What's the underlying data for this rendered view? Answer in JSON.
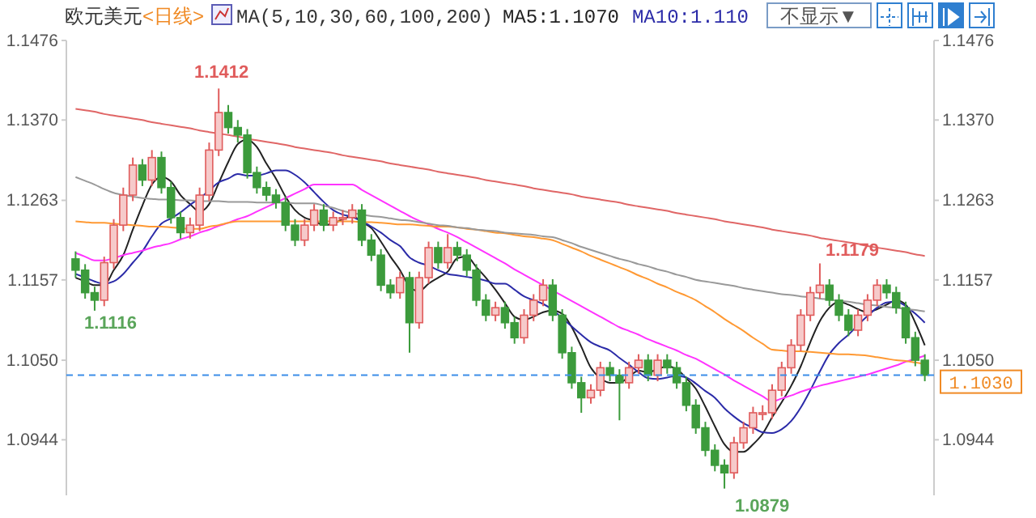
{
  "chart_data": {
    "type": "candlestick",
    "title": "欧元美元",
    "subtitle": "<日线>",
    "legend_title": "MA(5,10,30,60,100,200)",
    "legend": "top",
    "categories": [
      null,
      null,
      null,
      null,
      null,
      null,
      null,
      null,
      null,
      null,
      null,
      null,
      null,
      null,
      null,
      null,
      null,
      null,
      null,
      null,
      null,
      null,
      null,
      null,
      null,
      null,
      null,
      null,
      null,
      null,
      null,
      null,
      null,
      null,
      null,
      null,
      null,
      null,
      null,
      null,
      null,
      null,
      null,
      null,
      null,
      null,
      null,
      null,
      null,
      null,
      null,
      null,
      null,
      null,
      null,
      null,
      null,
      null,
      null,
      null,
      null,
      null,
      null,
      null,
      null,
      null,
      null,
      null,
      null,
      null,
      null,
      null,
      null,
      null,
      null,
      null,
      null,
      null,
      null,
      null,
      null,
      null,
      null,
      null,
      null,
      null,
      null,
      null,
      null,
      null
    ],
    "ylim": [
      1.087,
      1.1476
    ],
    "yticks": [
      1.0944,
      {
        "value": 1.105,
        "label": "1.1050"
      },
      1.1157,
      1.1263,
      {
        "value": 1.137,
        "label": "1.1370"
      },
      1.1476
    ],
    "y2lim": [
      1.087,
      1.1476
    ],
    "y2ticks": [
      1.0944,
      {
        "value": 1.105,
        "label": "1.1050"
      },
      1.1157,
      1.1263,
      {
        "value": 1.137,
        "label": "1.1370"
      },
      1.1476
    ],
    "ref_lines": [
      {
        "axis": "y2",
        "value": 1.103,
        "label": "1.1030",
        "color": "#3d8ee8",
        "line_style": "dashed"
      }
    ],
    "annotations": [
      "不显示▼",
      "1.1412",
      "1.1179",
      "1.1116",
      "1.0879"
    ],
    "series": [
      {
        "type": "candlestick",
        "ohlc": [
          [
            1.1185,
            1.1195,
            1.116,
            1.117
          ],
          [
            1.117,
            1.1178,
            1.1132,
            1.114
          ],
          [
            1.114,
            1.1148,
            1.1116,
            1.113
          ],
          [
            1.113,
            1.1188,
            1.1122,
            1.118
          ],
          [
            1.118,
            1.1238,
            1.1172,
            1.123
          ],
          [
            1.123,
            1.128,
            1.1222,
            1.127
          ],
          [
            1.127,
            1.132,
            1.1262,
            1.131
          ],
          [
            1.131,
            1.1318,
            1.1282,
            1.129
          ],
          [
            1.129,
            1.133,
            1.1282,
            1.132
          ],
          [
            1.132,
            1.1328,
            1.1272,
            1.128
          ],
          [
            1.128,
            1.1288,
            1.1232,
            1.124
          ],
          [
            1.124,
            1.1248,
            1.1212,
            1.122
          ],
          [
            1.122,
            1.124,
            1.1212,
            1.123
          ],
          [
            1.123,
            1.128,
            1.1222,
            1.127
          ],
          [
            1.127,
            1.134,
            1.1262,
            1.133
          ],
          [
            1.133,
            1.1412,
            1.1322,
            1.138
          ],
          [
            1.138,
            1.139,
            1.1352,
            1.136
          ],
          [
            1.136,
            1.137,
            1.134,
            1.135
          ],
          [
            1.135,
            1.1358,
            1.1292,
            1.13
          ],
          [
            1.13,
            1.1308,
            1.1272,
            1.128
          ],
          [
            1.128,
            1.1288,
            1.1262,
            1.127
          ],
          [
            1.127,
            1.1278,
            1.1252,
            1.126
          ],
          [
            1.126,
            1.1268,
            1.1222,
            1.123
          ],
          [
            1.123,
            1.1238,
            1.1202,
            1.121
          ],
          [
            1.121,
            1.1238,
            1.1202,
            1.123
          ],
          [
            1.123,
            1.1258,
            1.1222,
            1.125
          ],
          [
            1.125,
            1.1258,
            1.1222,
            1.123
          ],
          [
            1.123,
            1.1248,
            1.1222,
            1.124
          ],
          [
            1.124,
            1.125,
            1.123,
            1.124
          ],
          [
            1.124,
            1.1258,
            1.1232,
            1.125
          ],
          [
            1.125,
            1.1258,
            1.1202,
            1.121
          ],
          [
            1.121,
            1.1218,
            1.1182,
            1.119
          ],
          [
            1.119,
            1.1198,
            1.1142,
            1.115
          ],
          [
            1.115,
            1.1158,
            1.1132,
            1.114
          ],
          [
            1.114,
            1.1168,
            1.1132,
            1.116
          ],
          [
            1.116,
            1.1168,
            1.106,
            1.11
          ],
          [
            1.11,
            1.1168,
            1.1092,
            1.116
          ],
          [
            1.116,
            1.1208,
            1.1152,
            1.12
          ],
          [
            1.12,
            1.1208,
            1.1172,
            1.118
          ],
          [
            1.118,
            1.1218,
            1.1172,
            1.12
          ],
          [
            1.12,
            1.1208,
            1.1182,
            1.119
          ],
          [
            1.119,
            1.1198,
            1.1162,
            1.117
          ],
          [
            1.117,
            1.1178,
            1.1122,
            1.113
          ],
          [
            1.113,
            1.1138,
            1.1102,
            1.111
          ],
          [
            1.111,
            1.1128,
            1.1102,
            1.112
          ],
          [
            1.112,
            1.1128,
            1.1092,
            1.11
          ],
          [
            1.11,
            1.1108,
            1.1072,
            1.108
          ],
          [
            1.108,
            1.1118,
            1.1072,
            1.111
          ],
          [
            1.111,
            1.1138,
            1.1102,
            1.113
          ],
          [
            1.113,
            1.1158,
            1.1122,
            1.115
          ],
          [
            1.115,
            1.1158,
            1.1102,
            1.111
          ],
          [
            1.111,
            1.1118,
            1.1052,
            1.106
          ],
          [
            1.106,
            1.1068,
            1.1012,
            1.102
          ],
          [
            1.102,
            1.1028,
            1.098,
            1.1
          ],
          [
            1.1,
            1.1018,
            1.0992,
            1.101
          ],
          [
            1.101,
            1.1048,
            1.1002,
            1.104
          ],
          [
            1.104,
            1.1048,
            1.1022,
            1.103
          ],
          [
            1.103,
            1.1038,
            1.097,
            1.102
          ],
          [
            1.102,
            1.1048,
            1.1012,
            1.104
          ],
          [
            1.104,
            1.1058,
            1.1032,
            1.105
          ],
          [
            1.105,
            1.1058,
            1.1022,
            1.103
          ],
          [
            1.103,
            1.1058,
            1.1022,
            1.105
          ],
          [
            1.105,
            1.1058,
            1.1032,
            1.104
          ],
          [
            1.104,
            1.1048,
            1.1012,
            1.102
          ],
          [
            1.102,
            1.1028,
            1.0982,
            1.099
          ],
          [
            1.099,
            1.0998,
            1.0952,
            1.096
          ],
          [
            1.096,
            1.0968,
            1.0922,
            1.093
          ],
          [
            1.093,
            1.0938,
            1.0902,
            1.091
          ],
          [
            1.091,
            1.0918,
            1.0879,
            1.09
          ],
          [
            1.09,
            1.0948,
            1.0892,
            1.094
          ],
          [
            1.094,
            1.0968,
            1.0932,
            1.096
          ],
          [
            1.096,
            1.0988,
            1.0952,
            1.098
          ],
          [
            1.098,
            1.099,
            1.097,
            1.098
          ],
          [
            1.098,
            1.1018,
            1.0972,
            1.101
          ],
          [
            1.101,
            1.1048,
            1.1002,
            1.104
          ],
          [
            1.104,
            1.1078,
            1.1032,
            1.107
          ],
          [
            1.107,
            1.1118,
            1.1062,
            1.111
          ],
          [
            1.111,
            1.1148,
            1.1102,
            1.114
          ],
          [
            1.114,
            1.1179,
            1.1132,
            1.115
          ],
          [
            1.115,
            1.1158,
            1.1122,
            1.113
          ],
          [
            1.113,
            1.1138,
            1.1102,
            1.111
          ],
          [
            1.111,
            1.1118,
            1.1082,
            1.109
          ],
          [
            1.109,
            1.1118,
            1.1082,
            1.111
          ],
          [
            1.111,
            1.1138,
            1.1102,
            1.113
          ],
          [
            1.113,
            1.1158,
            1.1122,
            1.115
          ],
          [
            1.115,
            1.1158,
            1.1132,
            1.114
          ],
          [
            1.114,
            1.1148,
            1.1112,
            1.112
          ],
          [
            1.112,
            1.1128,
            1.1072,
            1.108
          ],
          [
            1.108,
            1.1088,
            1.1042,
            1.105
          ],
          [
            1.105,
            1.1058,
            1.1022,
            1.103
          ]
        ]
      },
      {
        "type": "line",
        "name": "MA5:1.1070",
        "color": "#222222",
        "values": [
          1.116,
          1.1155,
          1.115,
          1.115,
          1.117,
          1.119,
          1.1224,
          1.1256,
          1.1284,
          1.1294,
          1.1288,
          1.127,
          1.1258,
          1.1248,
          1.1258,
          1.1286,
          1.1314,
          1.1338,
          1.1344,
          1.1334,
          1.1312,
          1.1292,
          1.1268,
          1.125,
          1.124,
          1.1236,
          1.123,
          1.1232,
          1.1238,
          1.1242,
          1.1234,
          1.1226,
          1.1208,
          1.1188,
          1.117,
          1.1148,
          1.1142,
          1.1152,
          1.116,
          1.1168,
          1.1186,
          1.1188,
          1.1174,
          1.116,
          1.1144,
          1.1126,
          1.1108,
          1.1104,
          1.1108,
          1.1114,
          1.1116,
          1.1112,
          1.1094,
          1.1068,
          1.104,
          1.1026,
          1.102,
          1.102,
          1.1028,
          1.1036,
          1.1034,
          1.1038,
          1.1042,
          1.1038,
          1.1026,
          1.1012,
          1.0988,
          1.0962,
          1.0938,
          1.0928,
          1.0928,
          1.0938,
          1.0952,
          1.0974,
          1.0994,
          1.1016,
          1.1042,
          1.1074,
          1.1102,
          1.112,
          1.1128,
          1.1124,
          1.1118,
          1.1114,
          1.1118,
          1.1124,
          1.113,
          1.1124,
          1.11,
          1.107
        ]
      },
      {
        "type": "line",
        "name": "MA10:1.110",
        "color": "#2b2ba8",
        "values": [
          1.1165,
          1.116,
          1.1155,
          1.1152,
          1.1155,
          1.1165,
          1.118,
          1.1195,
          1.1215,
          1.1232,
          1.1239,
          1.1247,
          1.1257,
          1.1266,
          1.1276,
          1.1287,
          1.1292,
          1.1298,
          1.1296,
          1.1296,
          1.1299,
          1.1303,
          1.1303,
          1.1297,
          1.1287,
          1.1274,
          1.1261,
          1.125,
          1.1244,
          1.1241,
          1.1235,
          1.1228,
          1.122,
          1.121,
          1.1202,
          1.1187,
          1.118,
          1.1176,
          1.117,
          1.1165,
          1.1163,
          1.1161,
          1.1159,
          1.1156,
          1.1152,
          1.1152,
          1.1144,
          1.1135,
          1.113,
          1.1125,
          1.1117,
          1.1106,
          1.1095,
          1.1084,
          1.1074,
          1.1068,
          1.1063,
          1.1053,
          1.1044,
          1.1034,
          1.1026,
          1.1025,
          1.1027,
          1.1029,
          1.1027,
          1.1019,
          1.1009,
          1.1,
          1.0986,
          1.0975,
          1.0966,
          1.096,
          1.0954,
          1.0953,
          1.0958,
          1.0969,
          1.0987,
          1.101,
          1.1035,
          1.1058,
          1.1073,
          1.1084,
          1.1097,
          1.1109,
          1.112,
          1.1127,
          1.1128,
          1.1122,
          1.1112,
          1.11
        ]
      },
      {
        "type": "line",
        "color": "#ff33ff",
        "values": [
          1.1193,
          1.1188,
          1.1183,
          1.1183,
          1.1186,
          1.119,
          1.1193,
          1.1196,
          1.12,
          1.1203,
          1.1206,
          1.1211,
          1.1215,
          1.122,
          1.1224,
          1.1229,
          1.1233,
          1.1238,
          1.1242,
          1.1248,
          1.1254,
          1.126,
          1.1266,
          1.1272,
          1.1278,
          1.1284,
          1.1284,
          1.1284,
          1.1284,
          1.1284,
          1.1277,
          1.127,
          1.1263,
          1.1256,
          1.1249,
          1.1242,
          1.1236,
          1.1231,
          1.1225,
          1.122,
          1.1214,
          1.1207,
          1.12,
          1.1193,
          1.1186,
          1.1179,
          1.1171,
          1.1164,
          1.1157,
          1.115,
          1.1143,
          1.1136,
          1.1129,
          1.1122,
          1.1115,
          1.1108,
          1.1101,
          1.1094,
          1.1089,
          1.1084,
          1.1078,
          1.1073,
          1.1068,
          1.1063,
          1.1057,
          1.1052,
          1.1045,
          1.1038,
          1.1031,
          1.1023,
          1.1016,
          1.1009,
          1.1002,
          1.0995,
          1.0999,
          1.1003,
          1.1008,
          1.1012,
          1.1016,
          1.1019,
          1.1022,
          1.1025,
          1.1028,
          1.1031,
          1.1035,
          1.1039,
          1.1043,
          1.1048,
          1.1052,
          1.1056
        ]
      },
      {
        "type": "line",
        "color": "#ff9933",
        "values": [
          1.1235,
          1.1234,
          1.1233,
          1.1233,
          1.1232,
          1.1231,
          1.123,
          1.1229,
          1.1228,
          1.1228,
          1.1227,
          1.1226,
          1.1225,
          1.1225,
          1.1228,
          1.123,
          1.1233,
          1.1235,
          1.1235,
          1.1235,
          1.1235,
          1.1235,
          1.1235,
          1.1235,
          1.1235,
          1.1235,
          1.1235,
          1.1235,
          1.1235,
          1.1235,
          1.1234,
          1.1234,
          1.1233,
          1.1232,
          1.1231,
          1.1231,
          1.123,
          1.1229,
          1.1228,
          1.1228,
          1.1227,
          1.1225,
          1.1224,
          1.1222,
          1.122,
          1.1219,
          1.1217,
          1.1215,
          1.1214,
          1.1212,
          1.121,
          1.1205,
          1.12,
          1.1195,
          1.1189,
          1.1184,
          1.1179,
          1.1174,
          1.1169,
          1.1163,
          1.1158,
          1.1152,
          1.1147,
          1.1141,
          1.1136,
          1.113,
          1.1122,
          1.1114,
          1.1105,
          1.1097,
          1.1089,
          1.108,
          1.1072,
          1.1064,
          1.1063,
          1.1062,
          1.1062,
          1.1061,
          1.106,
          1.1059,
          1.1058,
          1.1058,
          1.1057,
          1.1056,
          1.1054,
          1.1052,
          1.105,
          1.1049,
          1.1047,
          1.1045
        ]
      },
      {
        "type": "line",
        "color": "#999999",
        "values": [
          1.1294,
          1.1289,
          1.1284,
          1.1278,
          1.1273,
          1.127,
          1.1268,
          1.1266,
          1.1265,
          1.1264,
          1.1264,
          1.1263,
          1.1263,
          1.1262,
          1.1262,
          1.1262,
          1.1261,
          1.1261,
          1.1261,
          1.126,
          1.126,
          1.126,
          1.126,
          1.1259,
          1.1259,
          1.1259,
          1.1256,
          1.1253,
          1.1249,
          1.1246,
          1.1244,
          1.1242,
          1.1241,
          1.1239,
          1.1237,
          1.1236,
          1.1234,
          1.1232,
          1.123,
          1.1229,
          1.1227,
          1.1226,
          1.1224,
          1.1223,
          1.1222,
          1.122,
          1.1219,
          1.1218,
          1.1217,
          1.1215,
          1.1214,
          1.121,
          1.1206,
          1.1201,
          1.1197,
          1.1193,
          1.1189,
          1.1185,
          1.1182,
          1.1178,
          1.1175,
          1.1171,
          1.1168,
          1.1164,
          1.1161,
          1.1157,
          1.1155,
          1.1153,
          1.1151,
          1.1149,
          1.1146,
          1.1144,
          1.1142,
          1.114,
          1.1138,
          1.1137,
          1.1135,
          1.1134,
          1.1132,
          1.1131,
          1.1129,
          1.1128,
          1.1126,
          1.1124,
          1.1123,
          1.1121,
          1.112,
          1.1118,
          1.1117,
          1.1115
        ]
      },
      {
        "type": "line",
        "color": "#e06666",
        "values": [
          1.1385,
          1.1383,
          1.1381,
          1.1378,
          1.1376,
          1.1374,
          1.1372,
          1.137,
          1.1367,
          1.1365,
          1.1363,
          1.1361,
          1.1359,
          1.1356,
          1.1354,
          1.1352,
          1.135,
          1.1348,
          1.1345,
          1.1343,
          1.1341,
          1.1339,
          1.1337,
          1.1334,
          1.1332,
          1.133,
          1.1328,
          1.1326,
          1.1323,
          1.1321,
          1.1319,
          1.1317,
          1.1315,
          1.1312,
          1.131,
          1.1308,
          1.1306,
          1.1304,
          1.1301,
          1.1299,
          1.1297,
          1.1295,
          1.1293,
          1.129,
          1.1288,
          1.1286,
          1.1284,
          1.1282,
          1.1279,
          1.1277,
          1.1275,
          1.1273,
          1.1271,
          1.1268,
          1.1266,
          1.1264,
          1.1262,
          1.126,
          1.1257,
          1.1255,
          1.1253,
          1.1251,
          1.1249,
          1.1246,
          1.1244,
          1.1242,
          1.124,
          1.1238,
          1.1235,
          1.1233,
          1.1231,
          1.1229,
          1.1227,
          1.1224,
          1.1222,
          1.122,
          1.1218,
          1.1216,
          1.1213,
          1.1211,
          1.1209,
          1.1207,
          1.1205,
          1.1202,
          1.12,
          1.1198,
          1.1196,
          1.1194,
          1.1191,
          1.1189
        ]
      }
    ]
  }
}
